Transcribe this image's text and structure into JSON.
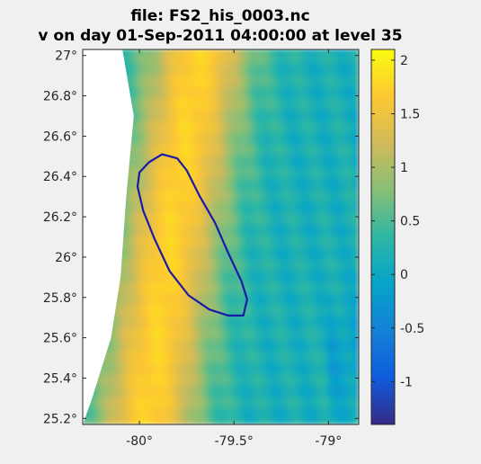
{
  "chart_data": {
    "type": "heatmap",
    "title": "file: FS2_his_0003.nc",
    "subtitle": "v on day 01-Sep-2011 04:00:00  at level 35",
    "xlabel": "",
    "ylabel": "",
    "xlim": [
      -80.3,
      -78.84
    ],
    "ylim": [
      25.17,
      27.03
    ],
    "x_ticks": [
      {
        "value": -80,
        "label": "-80°"
      },
      {
        "value": -79.5,
        "label": "-79.5°"
      },
      {
        "value": -79,
        "label": "-79°"
      }
    ],
    "y_ticks": [
      {
        "value": 27,
        "label": "27°"
      },
      {
        "value": 26.8,
        "label": "26.8°"
      },
      {
        "value": 26.6,
        "label": "26.6°"
      },
      {
        "value": 26.4,
        "label": "26.4°"
      },
      {
        "value": 26.2,
        "label": "26.2°"
      },
      {
        "value": 26,
        "label": "26°"
      },
      {
        "value": 25.8,
        "label": "25.8°"
      },
      {
        "value": 25.6,
        "label": "25.6°"
      },
      {
        "value": 25.4,
        "label": "25.4°"
      },
      {
        "value": 25.2,
        "label": "25.2°"
      }
    ],
    "colorbar": {
      "colormap": "parula",
      "clim": [
        -1.4,
        2.1
      ],
      "ticks": [
        {
          "value": 2,
          "label": "2"
        },
        {
          "value": 1.5,
          "label": "1.5"
        },
        {
          "value": 1,
          "label": "1"
        },
        {
          "value": 0.5,
          "label": "0.5"
        },
        {
          "value": 0,
          "label": "0"
        },
        {
          "value": -0.5,
          "label": "-0.5"
        },
        {
          "value": -1,
          "label": "-1"
        }
      ]
    },
    "field": {
      "jet_axis": [
        {
          "y": 25.17,
          "x": -79.96
        },
        {
          "y": 26.0,
          "x": -79.85
        },
        {
          "y": 27.03,
          "x": -79.68
        }
      ],
      "jet_core_value": 1.75,
      "background_value": 0.15,
      "coast_land_boundary": [
        {
          "y": 27.03,
          "x": -80.09
        },
        {
          "y": 26.7,
          "x": -80.03
        },
        {
          "y": 26.3,
          "x": -80.07
        },
        {
          "y": 25.9,
          "x": -80.1
        },
        {
          "y": 25.6,
          "x": -80.15
        },
        {
          "y": 25.3,
          "x": -80.25
        },
        {
          "y": 25.17,
          "x": -80.3
        }
      ]
    },
    "outline_polygon": {
      "color": "#1a1aa8",
      "points": [
        {
          "x": -79.88,
          "y": 26.51
        },
        {
          "x": -79.8,
          "y": 26.49
        },
        {
          "x": -79.75,
          "y": 26.43
        },
        {
          "x": -79.68,
          "y": 26.3
        },
        {
          "x": -79.6,
          "y": 26.17
        },
        {
          "x": -79.53,
          "y": 26.02
        },
        {
          "x": -79.46,
          "y": 25.88
        },
        {
          "x": -79.43,
          "y": 25.79
        },
        {
          "x": -79.45,
          "y": 25.71
        },
        {
          "x": -79.53,
          "y": 25.71
        },
        {
          "x": -79.63,
          "y": 25.74
        },
        {
          "x": -79.74,
          "y": 25.81
        },
        {
          "x": -79.84,
          "y": 25.93
        },
        {
          "x": -79.92,
          "y": 26.09
        },
        {
          "x": -79.98,
          "y": 26.23
        },
        {
          "x": -80.01,
          "y": 26.35
        },
        {
          "x": -80.0,
          "y": 26.42
        },
        {
          "x": -79.95,
          "y": 26.47
        }
      ]
    }
  }
}
